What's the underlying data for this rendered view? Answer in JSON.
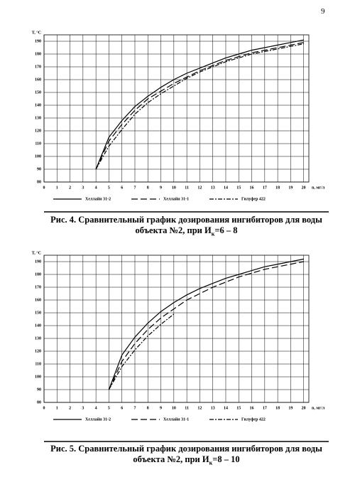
{
  "page_number": "9",
  "chart_data": [
    {
      "type": "line",
      "xlabel": "n, мг/л",
      "ylabel": "T, °C",
      "x": [
        4,
        5,
        6,
        7,
        8,
        9,
        10,
        11,
        12,
        13,
        14,
        15,
        16,
        17,
        18,
        19,
        20
      ],
      "series": [
        {
          "name": "Хеллайн 31-2",
          "color": "#000000",
          "values": [
            90,
            115,
            128,
            139,
            147,
            154,
            160,
            165,
            169,
            173,
            177,
            180,
            183,
            185,
            187,
            189,
            191
          ]
        },
        {
          "name": "Хеллайн 31-1",
          "color": "#000000",
          "values": [
            90,
            112,
            125,
            136,
            145,
            151,
            157,
            162,
            167,
            171,
            175,
            178,
            181,
            183,
            185,
            187,
            189
          ]
        },
        {
          "name": "Гилуфер 422",
          "color": "#000000",
          "values": [
            90,
            108,
            121,
            133,
            142,
            149,
            155,
            161,
            166,
            170,
            174,
            177,
            180,
            182,
            184,
            186,
            188
          ]
        }
      ],
      "xlim": [
        0,
        20.4
      ],
      "ylim": [
        80,
        195
      ],
      "xticks": [
        0,
        1,
        2,
        3,
        4,
        5,
        6,
        7,
        8,
        9,
        10,
        11,
        12,
        13,
        14,
        15,
        16,
        17,
        18,
        19,
        20
      ],
      "yticks": [
        80,
        90,
        100,
        110,
        120,
        130,
        140,
        150,
        160,
        170,
        180,
        190
      ],
      "grid": true
    },
    {
      "type": "line",
      "xlabel": "n, мг/л",
      "ylabel": "T, °C",
      "x": [
        5,
        6,
        7,
        8,
        9,
        10,
        11,
        12,
        13,
        14,
        15,
        16,
        17,
        18,
        19,
        20
      ],
      "series": [
        {
          "name": "Хеллайн 31-2",
          "color": "#000000",
          "values": [
            90,
            117,
            131,
            142,
            151,
            158,
            164,
            169,
            173,
            177,
            180,
            183,
            186,
            188,
            190,
            192
          ]
        },
        {
          "name": "Хеллайн 31-1",
          "color": "#000000",
          "values": [
            90,
            112,
            126,
            137,
            146,
            153,
            160,
            165,
            170,
            174,
            178,
            181,
            184,
            186,
            188,
            190
          ]
        },
        {
          "name": "Гилуфер 422",
          "color": "#000000",
          "values": [
            90,
            108,
            121,
            132,
            141,
            149,
            null,
            null,
            null,
            null,
            null,
            null,
            null,
            null,
            null,
            null
          ]
        }
      ],
      "xlim": [
        0,
        20.4
      ],
      "ylim": [
        80,
        195
      ],
      "xticks": [
        0,
        1,
        2,
        3,
        4,
        5,
        6,
        7,
        8,
        9,
        10,
        11,
        12,
        13,
        14,
        15,
        16,
        17,
        18,
        19,
        20
      ],
      "yticks": [
        80,
        90,
        100,
        110,
        120,
        130,
        140,
        150,
        160,
        170,
        180,
        190
      ],
      "grid": true
    }
  ],
  "captions": [
    {
      "line1": "Рис. 4. Сравнительный график дозирования ингибиторов для воды",
      "line2": "объекта №2,  при И",
      "sub": "к",
      "rest": "=6 – 8"
    },
    {
      "line1": "Рис. 5. Сравнительный график дозирования ингибиторов для воды",
      "line2": "объекта №2,  при И",
      "sub": "к",
      "rest": "=8 – 10"
    }
  ]
}
